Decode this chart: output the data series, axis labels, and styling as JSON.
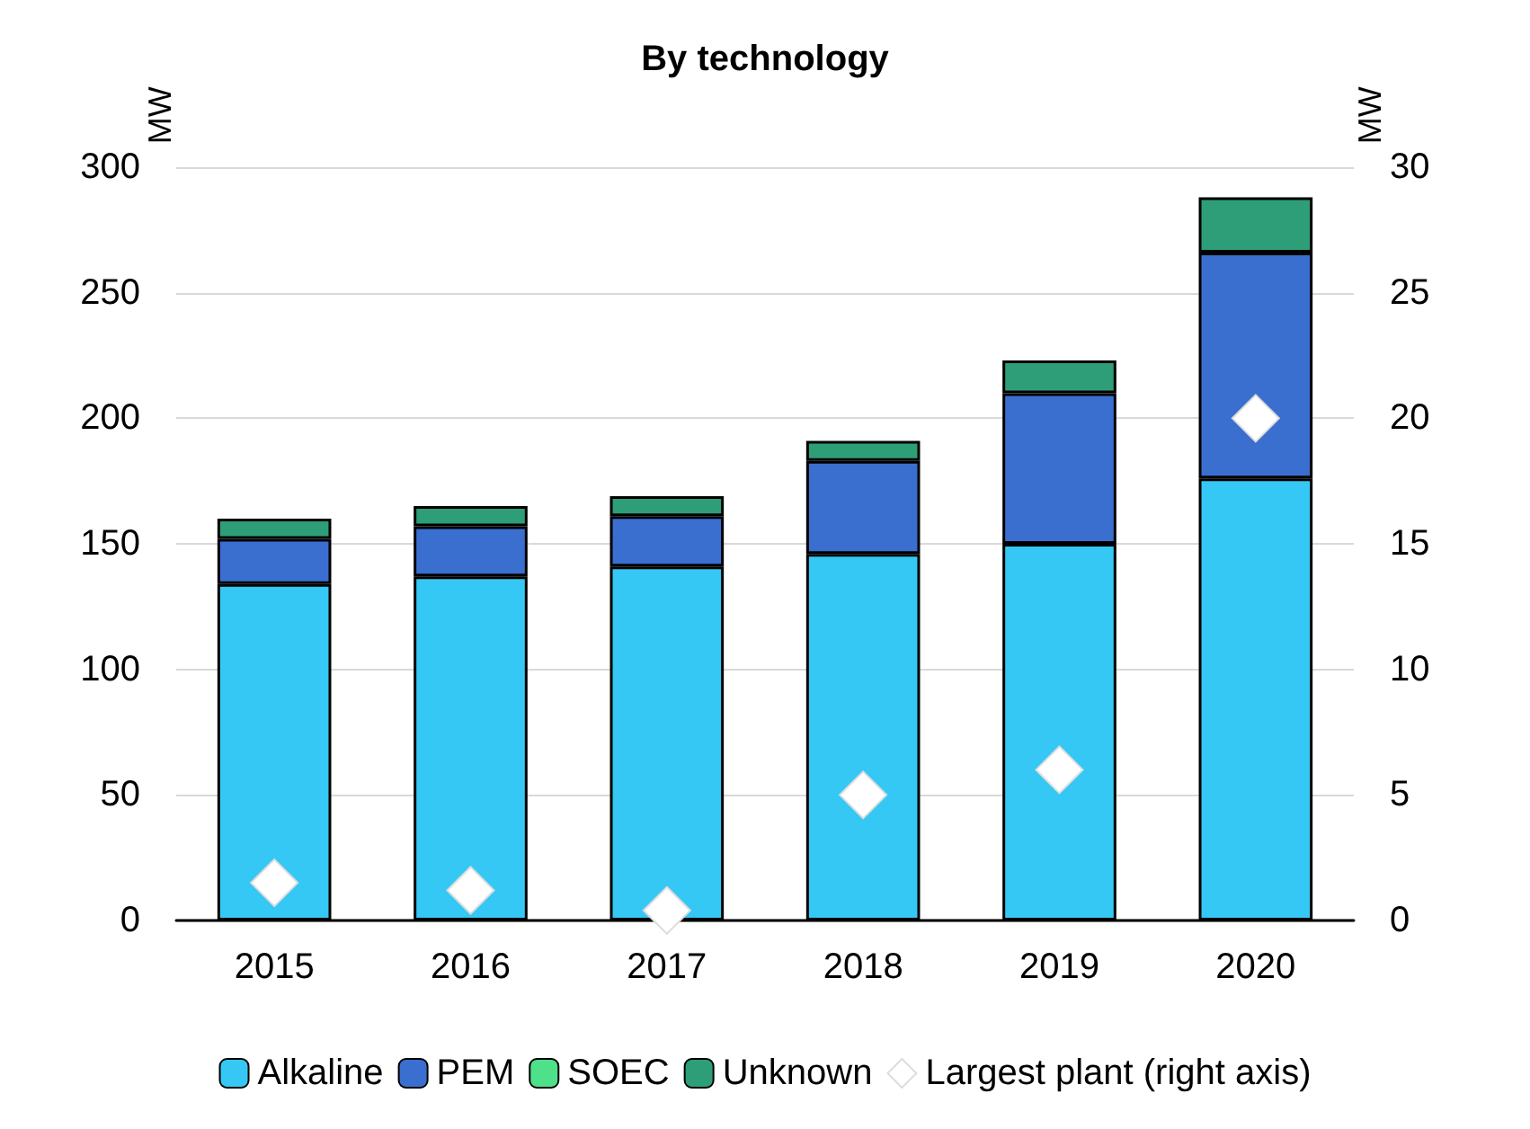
{
  "chart_data": {
    "type": "bar",
    "title": "By technology",
    "ylabel": "MW",
    "y2label": "MW",
    "categories": [
      "2015",
      "2016",
      "2017",
      "2018",
      "2019",
      "2020"
    ],
    "stacked": true,
    "series": [
      {
        "name": "Alkaline",
        "color": "#36c8f4",
        "values": [
          134,
          137,
          141,
          146,
          150,
          176
        ]
      },
      {
        "name": "PEM",
        "color": "#3a6fd0",
        "values": [
          18,
          20,
          20,
          37,
          60,
          90
        ]
      },
      {
        "name": "SOEC",
        "color": "#4fe08a",
        "values": [
          0,
          0,
          0,
          0,
          0,
          0
        ]
      },
      {
        "name": "Unknown",
        "color": "#2e9e78",
        "values": [
          8,
          8,
          8,
          8,
          13,
          22
        ]
      },
      {
        "name": "Largest plant (right axis)",
        "type": "scatter",
        "axis": "y2",
        "marker": "diamond",
        "color": "#ffffff",
        "values": [
          1.5,
          1.2,
          0.4,
          5,
          6,
          20
        ]
      }
    ],
    "ylim": [
      0,
      300
    ],
    "yticks": [
      0,
      50,
      100,
      150,
      200,
      250,
      300
    ],
    "y2lim": [
      0,
      30
    ],
    "y2ticks": [
      0,
      5,
      10,
      15,
      20,
      25,
      30
    ],
    "grid": "y",
    "legend": "bottom"
  }
}
